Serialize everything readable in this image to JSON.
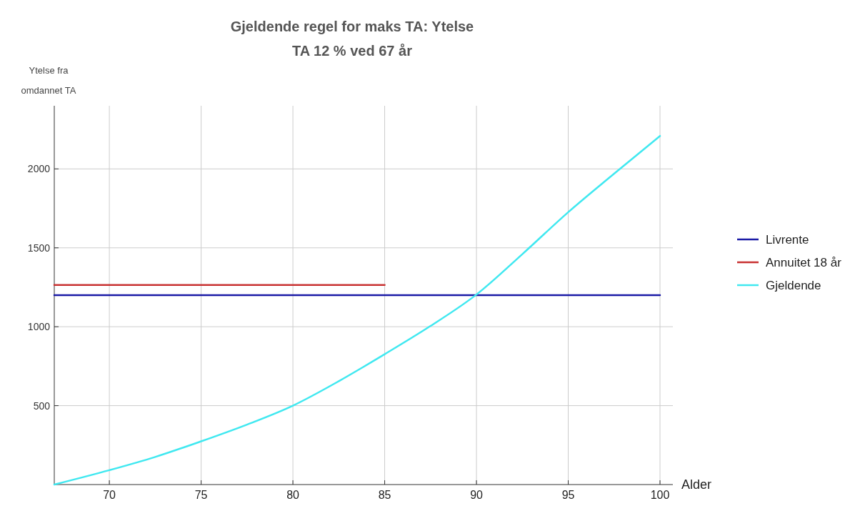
{
  "chart_data": {
    "type": "line",
    "title": "Gjeldende regel for maks TA: Ytelse",
    "subtitle": "TA 12 % ved 67 år",
    "xlabel": "Alder",
    "ylabel": "Ytelse fra omdannet TA",
    "xlim": [
      67,
      100.7
    ],
    "xticks": [
      70,
      75,
      80,
      85,
      90,
      95,
      100
    ],
    "ylim": [
      0,
      2400
    ],
    "yticks": [
      500,
      1000,
      1500,
      2000
    ],
    "grid": true,
    "legend": "right",
    "series": [
      {
        "name": "Livrente",
        "color": "#1a1aa6",
        "x": [
          67,
          100
        ],
        "values": [
          1200,
          1200
        ]
      },
      {
        "name": "Annuitet 18 år",
        "color": "#c83232",
        "x": [
          67,
          85
        ],
        "values": [
          1265,
          1265
        ]
      },
      {
        "name": "Gjeldende",
        "color": "#40e8f0",
        "x": [
          67,
          70,
          72.5,
          75,
          77.5,
          80,
          82.5,
          85,
          87.5,
          90,
          92.5,
          95,
          97.5,
          100
        ],
        "values": [
          0,
          91,
          175,
          274,
          380,
          500,
          655,
          826,
          1005,
          1204,
          1460,
          1726,
          1970,
          2209
        ]
      }
    ]
  }
}
